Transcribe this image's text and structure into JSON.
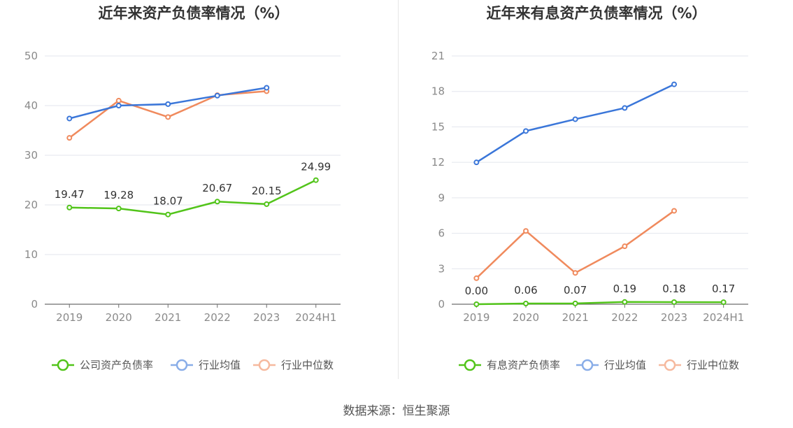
{
  "source_text": "数据来源：恒生聚源",
  "chart_data": [
    {
      "type": "line",
      "title": "近年来资产负债率情况（%）",
      "categories": [
        "2019",
        "2020",
        "2021",
        "2022",
        "2023",
        "2024H1"
      ],
      "ylim": [
        0,
        50
      ],
      "yticks": [
        0,
        10,
        20,
        30,
        40,
        50
      ],
      "grid": true,
      "legend_position": "bottom",
      "series": [
        {
          "name": "公司资产负债率",
          "color": "#52c41a",
          "labels": true,
          "values": [
            19.47,
            19.28,
            18.07,
            20.67,
            20.15,
            24.99
          ],
          "value_labels": [
            "19.47",
            "19.28",
            "18.07",
            "20.67",
            "20.15",
            "24.99"
          ]
        },
        {
          "name": "行业均值",
          "color": "#3a76d9",
          "labels": false,
          "values": [
            37.4,
            40.0,
            40.3,
            42.0,
            43.6,
            null
          ]
        },
        {
          "name": "行业中位数",
          "color": "#f08a5d",
          "labels": false,
          "values": [
            33.5,
            41.0,
            37.7,
            42.1,
            42.9,
            null
          ]
        }
      ]
    },
    {
      "type": "line",
      "title": "近年来有息资产负债率情况（%）",
      "categories": [
        "2019",
        "2020",
        "2021",
        "2022",
        "2023",
        "2024H1"
      ],
      "ylim": [
        0,
        21
      ],
      "yticks": [
        0,
        3,
        6,
        9,
        12,
        15,
        18,
        21
      ],
      "grid": true,
      "legend_position": "bottom",
      "series": [
        {
          "name": "有息资产负债率",
          "color": "#52c41a",
          "labels": true,
          "values": [
            0.0,
            0.06,
            0.07,
            0.19,
            0.18,
            0.17
          ],
          "value_labels": [
            "0.00",
            "0.06",
            "0.07",
            "0.19",
            "0.18",
            "0.17"
          ]
        },
        {
          "name": "行业均值",
          "color": "#3a76d9",
          "labels": false,
          "values": [
            12.0,
            14.65,
            15.65,
            16.6,
            18.6,
            null
          ]
        },
        {
          "name": "行业中位数",
          "color": "#f08a5d",
          "labels": false,
          "values": [
            2.2,
            6.2,
            2.65,
            4.9,
            7.9,
            null
          ]
        }
      ]
    }
  ]
}
